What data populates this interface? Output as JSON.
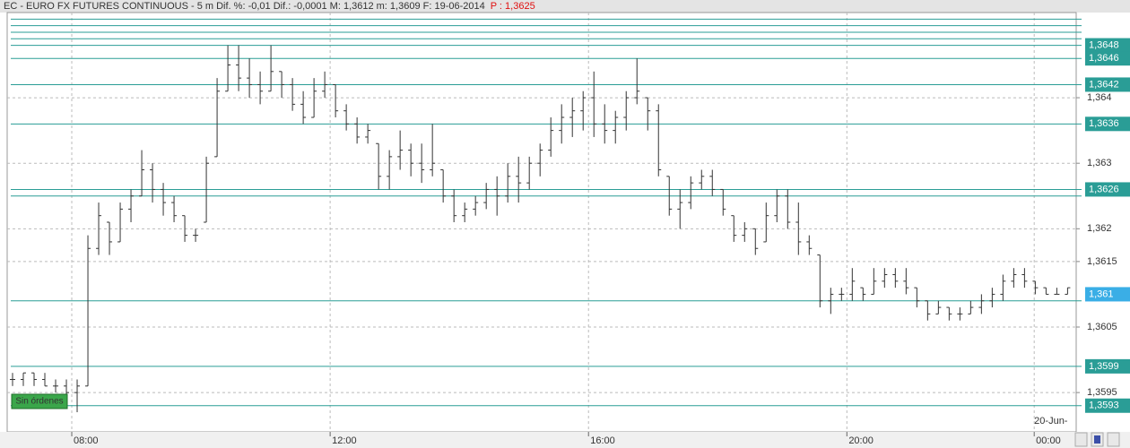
{
  "header": {
    "title": "EC - EURO FX FUTURES CONTINUOUS - 5 m  Dif. %: -0,01  Dif.: -0,0001  M: 1,3612  m: 1,3609  F: 19-06-2014",
    "price": "P : 1,3625"
  },
  "status": "Sin órdenes",
  "chart_data": {
    "type": "ohlc",
    "ylim": [
      1.3589,
      1.3653
    ],
    "yticks": [
      {
        "value": 1.364,
        "label": "1,364"
      },
      {
        "value": 1.363,
        "label": "1,363"
      },
      {
        "value": 1.362,
        "label": "1,362"
      },
      {
        "value": 1.3615,
        "label": "1,3615"
      },
      {
        "value": 1.3605,
        "label": "1,3605"
      },
      {
        "value": 1.3595,
        "label": "1,3595"
      }
    ],
    "xlim": [
      0,
      99.3
    ],
    "xticks": [
      {
        "value": 6,
        "label": "08:00"
      },
      {
        "value": 30,
        "label": "12:00"
      },
      {
        "value": 54,
        "label": "16:00"
      },
      {
        "value": 78,
        "label": "20:00"
      },
      {
        "value": 95.4,
        "label": "00:00"
      }
    ],
    "date_label": "20-Jun-",
    "grid": true,
    "color": "#333333",
    "level_color": "#2a9d96",
    "levels": [
      {
        "value": 1.3648,
        "label": "1,3648"
      },
      {
        "value": 1.3646,
        "label": "1,3646"
      },
      {
        "value": 1.3642,
        "label": "1,3642"
      },
      {
        "value": 1.3636,
        "label": "1,3636"
      },
      {
        "value": 1.3626,
        "label": "1,3626"
      },
      {
        "value": 1.3599,
        "label": "1,3599"
      },
      {
        "value": 1.3593,
        "label": "1,3593"
      }
    ],
    "extra_levels": [
      1.3652,
      1.3651,
      1.365,
      1.3649,
      1.3625,
      1.3609
    ],
    "last": {
      "value": 1.361,
      "label": "1,361",
      "color": "#3aaee6"
    },
    "ohlc": [
      [
        1.3597,
        1.3598,
        1.3596,
        1.3597
      ],
      [
        1.3597,
        1.3598,
        1.3596,
        1.3598
      ],
      [
        1.3598,
        1.3598,
        1.3596,
        1.3597
      ],
      [
        1.3597,
        1.3598,
        1.3596,
        1.3596
      ],
      [
        1.3596,
        1.3597,
        1.3595,
        1.3596
      ],
      [
        1.3596,
        1.3597,
        1.3594,
        1.3595
      ],
      [
        1.3595,
        1.3597,
        1.3592,
        1.3596
      ],
      [
        1.3596,
        1.3619,
        1.3596,
        1.3617
      ],
      [
        1.3617,
        1.3624,
        1.3616,
        1.3622
      ],
      [
        1.3621,
        1.3621,
        1.3616,
        1.3618
      ],
      [
        1.3618,
        1.3624,
        1.3618,
        1.3623
      ],
      [
        1.3623,
        1.3626,
        1.3621,
        1.3625
      ],
      [
        1.3625,
        1.3632,
        1.3625,
        1.3629
      ],
      [
        1.3629,
        1.363,
        1.3624,
        1.3626
      ],
      [
        1.3626,
        1.3627,
        1.3622,
        1.3624
      ],
      [
        1.3624,
        1.3625,
        1.3621,
        1.3622
      ],
      [
        1.3622,
        1.3622,
        1.3618,
        1.3619
      ],
      [
        1.3619,
        1.362,
        1.3618,
        1.3619
      ],
      [
        1.3621,
        1.3631,
        1.3621,
        1.363
      ],
      [
        1.3631,
        1.3643,
        1.3631,
        1.3641
      ],
      [
        1.3641,
        1.3648,
        1.3641,
        1.3645
      ],
      [
        1.3645,
        1.3648,
        1.3641,
        1.3643
      ],
      [
        1.3643,
        1.3646,
        1.364,
        1.3642
      ],
      [
        1.3642,
        1.3644,
        1.3639,
        1.3641
      ],
      [
        1.3641,
        1.3648,
        1.3641,
        1.3644
      ],
      [
        1.3644,
        1.3644,
        1.364,
        1.3642
      ],
      [
        1.3642,
        1.3643,
        1.3638,
        1.3639
      ],
      [
        1.3639,
        1.3641,
        1.3636,
        1.3637
      ],
      [
        1.3637,
        1.3643,
        1.3637,
        1.3641
      ],
      [
        1.3641,
        1.3644,
        1.364,
        1.3642
      ],
      [
        1.3642,
        1.3642,
        1.3637,
        1.3638
      ],
      [
        1.3638,
        1.3639,
        1.3635,
        1.3636
      ],
      [
        1.3636,
        1.3637,
        1.3633,
        1.3634
      ],
      [
        1.3634,
        1.3636,
        1.3633,
        1.3635
      ],
      [
        1.3633,
        1.3633,
        1.3626,
        1.3628
      ],
      [
        1.3628,
        1.3632,
        1.3626,
        1.3631
      ],
      [
        1.3631,
        1.3635,
        1.3629,
        1.3632
      ],
      [
        1.3632,
        1.3633,
        1.3628,
        1.363
      ],
      [
        1.363,
        1.3633,
        1.3627,
        1.3629
      ],
      [
        1.3629,
        1.3636,
        1.3628,
        1.363
      ],
      [
        1.3629,
        1.3629,
        1.3624,
        1.3625
      ],
      [
        1.3625,
        1.3626,
        1.3621,
        1.3622
      ],
      [
        1.3622,
        1.3624,
        1.3621,
        1.3623
      ],
      [
        1.3623,
        1.3625,
        1.3622,
        1.3624
      ],
      [
        1.3624,
        1.3627,
        1.3623,
        1.3626
      ],
      [
        1.3626,
        1.3628,
        1.3622,
        1.3625
      ],
      [
        1.3625,
        1.363,
        1.3624,
        1.3628
      ],
      [
        1.3628,
        1.3631,
        1.3624,
        1.3627
      ],
      [
        1.3627,
        1.3631,
        1.3626,
        1.363
      ],
      [
        1.363,
        1.3633,
        1.3628,
        1.3632
      ],
      [
        1.3632,
        1.3637,
        1.3631,
        1.3635
      ],
      [
        1.3635,
        1.3639,
        1.3633,
        1.3637
      ],
      [
        1.3637,
        1.364,
        1.3634,
        1.3638
      ],
      [
        1.3638,
        1.3641,
        1.3635,
        1.364
      ],
      [
        1.364,
        1.3644,
        1.3634,
        1.3636
      ],
      [
        1.3636,
        1.3639,
        1.3633,
        1.3635
      ],
      [
        1.3635,
        1.3638,
        1.3633,
        1.3637
      ],
      [
        1.3637,
        1.3641,
        1.3635,
        1.364
      ],
      [
        1.364,
        1.3646,
        1.3639,
        1.3641
      ],
      [
        1.364,
        1.364,
        1.3635,
        1.3638
      ],
      [
        1.3638,
        1.3639,
        1.3628,
        1.3629
      ],
      [
        1.3628,
        1.3628,
        1.3622,
        1.3623
      ],
      [
        1.3623,
        1.3626,
        1.362,
        1.3624
      ],
      [
        1.3624,
        1.3628,
        1.3623,
        1.3627
      ],
      [
        1.3627,
        1.3629,
        1.3626,
        1.3628
      ],
      [
        1.3628,
        1.3629,
        1.3625,
        1.3626
      ],
      [
        1.3626,
        1.3626,
        1.3622,
        1.3623
      ],
      [
        1.3622,
        1.3622,
        1.3618,
        1.3619
      ],
      [
        1.3619,
        1.3621,
        1.3618,
        1.362
      ],
      [
        1.362,
        1.362,
        1.3616,
        1.3617
      ],
      [
        1.3618,
        1.3624,
        1.3618,
        1.3622
      ],
      [
        1.3622,
        1.3626,
        1.3621,
        1.3625
      ],
      [
        1.3625,
        1.3626,
        1.362,
        1.3621
      ],
      [
        1.3621,
        1.3624,
        1.3616,
        1.3618
      ],
      [
        1.3618,
        1.3619,
        1.3616,
        1.3617
      ],
      [
        1.3616,
        1.3616,
        1.3608,
        1.3609
      ],
      [
        1.3609,
        1.3611,
        1.3607,
        1.361
      ],
      [
        1.361,
        1.3611,
        1.3609,
        1.361
      ],
      [
        1.361,
        1.3614,
        1.3609,
        1.3612
      ],
      [
        1.3611,
        1.3611,
        1.3609,
        1.361
      ],
      [
        1.361,
        1.3614,
        1.361,
        1.3612
      ],
      [
        1.3612,
        1.3614,
        1.3611,
        1.3613
      ],
      [
        1.3613,
        1.3614,
        1.3611,
        1.3612
      ],
      [
        1.3612,
        1.3614,
        1.361,
        1.3611
      ],
      [
        1.3611,
        1.3611,
        1.3608,
        1.3609
      ],
      [
        1.3609,
        1.3609,
        1.3606,
        1.3607
      ],
      [
        1.3607,
        1.3609,
        1.3607,
        1.3608
      ],
      [
        1.3608,
        1.3608,
        1.3606,
        1.3607
      ],
      [
        1.3607,
        1.3608,
        1.3606,
        1.3607
      ],
      [
        1.3607,
        1.3609,
        1.3607,
        1.3608
      ],
      [
        1.3608,
        1.361,
        1.3607,
        1.3609
      ],
      [
        1.3609,
        1.3611,
        1.3608,
        1.361
      ],
      [
        1.361,
        1.3613,
        1.3609,
        1.3612
      ],
      [
        1.3612,
        1.3614,
        1.3611,
        1.3613
      ],
      [
        1.3613,
        1.3614,
        1.3611,
        1.3612
      ],
      [
        1.3612,
        1.3612,
        1.361,
        1.3611
      ],
      [
        1.3611,
        1.3611,
        1.361,
        1.361
      ],
      [
        1.361,
        1.3611,
        1.361,
        1.361
      ],
      [
        1.361,
        1.3611,
        1.361,
        1.3611
      ]
    ]
  }
}
